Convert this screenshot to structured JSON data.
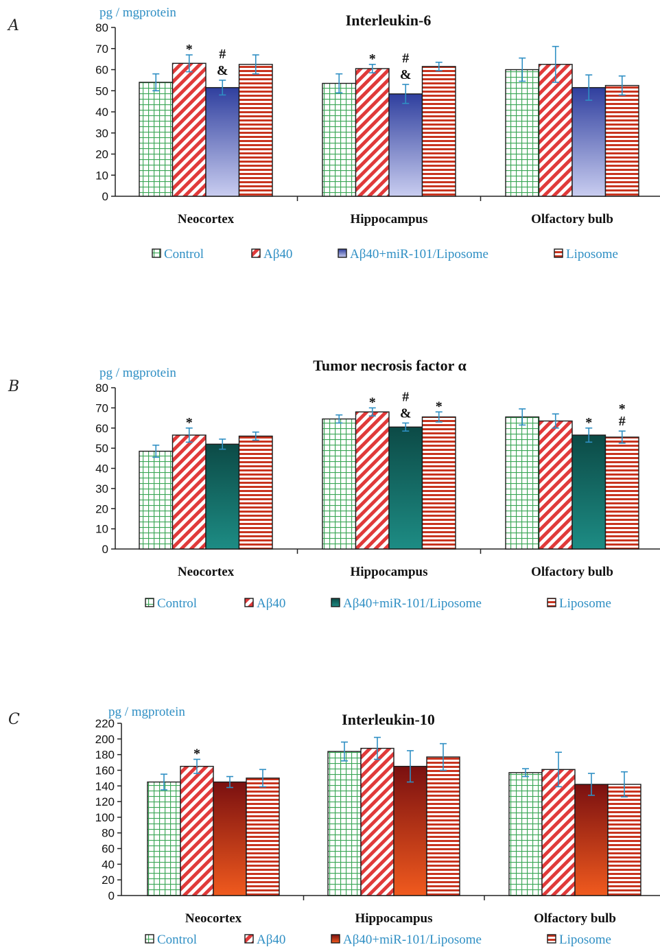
{
  "chart_data": [
    {
      "panel": "A",
      "type": "bar",
      "title": "Interleukin-6",
      "ylabel": "pg / mgprotein",
      "ylim": [
        0,
        80
      ],
      "yticks": [
        0,
        10,
        20,
        30,
        40,
        50,
        60,
        70,
        80
      ],
      "categories": [
        "Neocortex",
        "Hippocampus",
        "Olfactory bulb"
      ],
      "series": [
        {
          "name": "Control",
          "values": [
            54,
            53.5,
            60
          ],
          "errors": [
            4,
            4.5,
            5.5
          ],
          "pattern": "grid"
        },
        {
          "name": "Aβ40",
          "values": [
            63,
            60.5,
            62.5
          ],
          "errors": [
            4,
            2,
            8.5
          ],
          "pattern": "diagonal"
        },
        {
          "name": "Aβ40+miR-101/Liposome",
          "values": [
            51.5,
            48.5,
            51.5
          ],
          "errors": [
            3.5,
            4.5,
            6
          ],
          "pattern": "gradient-blue"
        },
        {
          "name": "Liposome",
          "values": [
            62.5,
            61.5,
            52.5
          ],
          "errors": [
            4.5,
            2,
            4.5
          ],
          "pattern": "horizontal"
        }
      ],
      "annotations": [
        {
          "category": 0,
          "series": 1,
          "text": [
            "*"
          ]
        },
        {
          "category": 0,
          "series": 2,
          "text": [
            "#",
            "&"
          ]
        },
        {
          "category": 1,
          "series": 1,
          "text": [
            "*"
          ]
        },
        {
          "category": 1,
          "series": 2,
          "text": [
            "#",
            "&"
          ]
        }
      ]
    },
    {
      "panel": "B",
      "type": "bar",
      "title": "Tumor necrosis factor α",
      "ylabel": "pg / mgprotein",
      "ylim": [
        0,
        80
      ],
      "yticks": [
        0,
        10,
        20,
        30,
        40,
        50,
        60,
        70,
        80
      ],
      "categories": [
        "Neocortex",
        "Hippocampus",
        "Olfactory bulb"
      ],
      "series": [
        {
          "name": "Control",
          "values": [
            48.5,
            64.5,
            65.5
          ],
          "errors": [
            3,
            2,
            4
          ],
          "pattern": "grid"
        },
        {
          "name": "Aβ40",
          "values": [
            56.5,
            68,
            63.5
          ],
          "errors": [
            3.5,
            2,
            3.5
          ],
          "pattern": "diagonal"
        },
        {
          "name": "Aβ40+miR-101/Liposome",
          "values": [
            52,
            60.5,
            56.5
          ],
          "errors": [
            2.5,
            2,
            3.5
          ],
          "pattern": "gradient-teal"
        },
        {
          "name": "Liposome",
          "values": [
            56,
            65.5,
            55.5
          ],
          "errors": [
            2,
            2.5,
            3
          ],
          "pattern": "horizontal"
        }
      ],
      "annotations": [
        {
          "category": 0,
          "series": 1,
          "text": [
            "*"
          ]
        },
        {
          "category": 1,
          "series": 1,
          "text": [
            "*"
          ]
        },
        {
          "category": 1,
          "series": 2,
          "text": [
            "#",
            "&"
          ]
        },
        {
          "category": 1,
          "series": 3,
          "text": [
            "*"
          ]
        },
        {
          "category": 2,
          "series": 2,
          "text": [
            "*"
          ]
        },
        {
          "category": 2,
          "series": 3,
          "text": [
            "*",
            "#"
          ]
        }
      ]
    },
    {
      "panel": "C",
      "type": "bar",
      "title": "Interleukin-10",
      "ylabel": "pg / mgprotein",
      "ylim": [
        0,
        220
      ],
      "yticks": [
        0,
        20,
        40,
        60,
        80,
        100,
        120,
        140,
        160,
        180,
        200,
        220
      ],
      "categories": [
        "Neocortex",
        "Hippocampus",
        "Olfactory bulb"
      ],
      "series": [
        {
          "name": "Control",
          "values": [
            145,
            184,
            157
          ],
          "errors": [
            10,
            12,
            5
          ],
          "pattern": "grid"
        },
        {
          "name": "Aβ40",
          "values": [
            165,
            188,
            161
          ],
          "errors": [
            9,
            14,
            22
          ],
          "pattern": "diagonal"
        },
        {
          "name": "Aβ40+miR-101/Liposome",
          "values": [
            145,
            165,
            142
          ],
          "errors": [
            7,
            20,
            14
          ],
          "pattern": "gradient-red"
        },
        {
          "name": "Liposome",
          "values": [
            150,
            177,
            142
          ],
          "errors": [
            11,
            17,
            16
          ],
          "pattern": "horizontal"
        }
      ],
      "annotations": [
        {
          "category": 0,
          "series": 1,
          "text": [
            "*"
          ]
        }
      ]
    }
  ]
}
